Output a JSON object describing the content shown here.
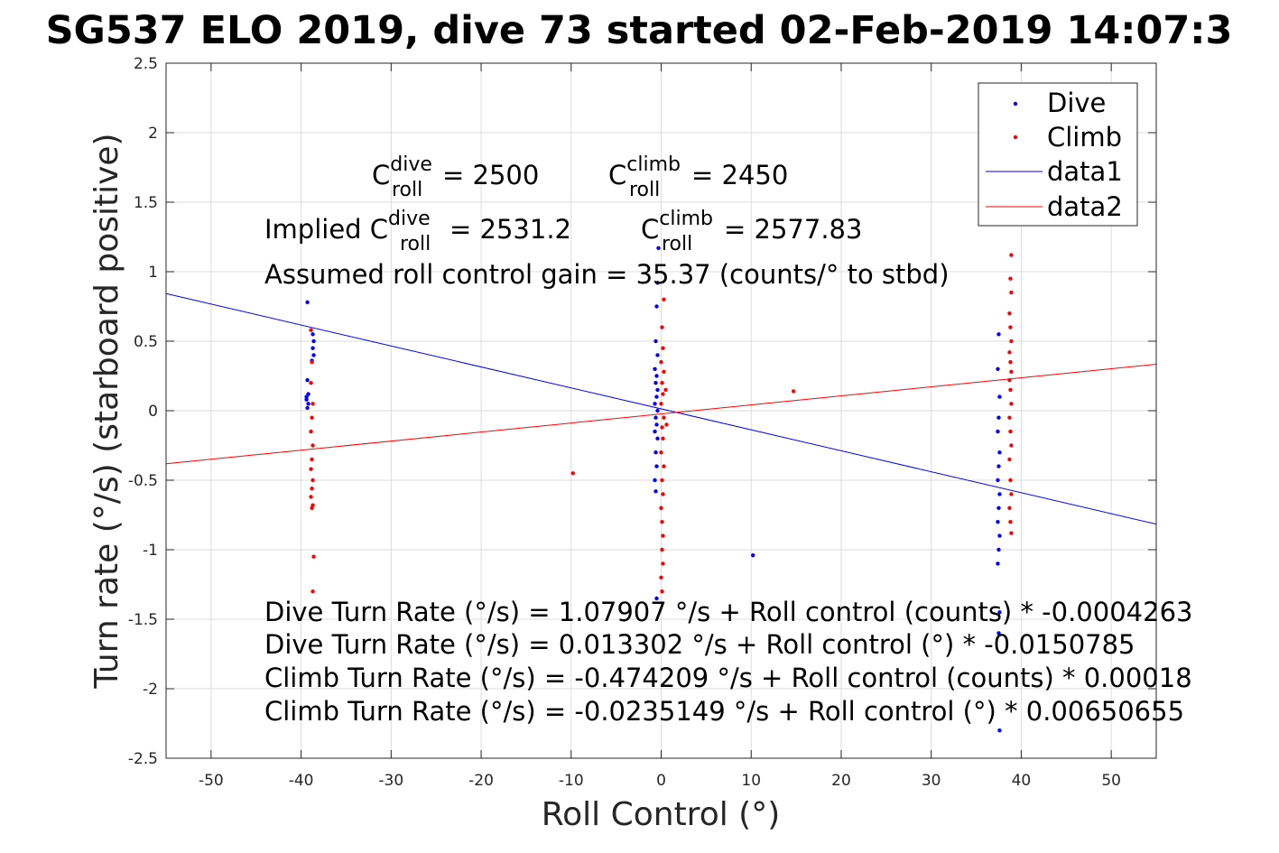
{
  "chart_data": {
    "type": "scatter",
    "title": "SG537 ELO 2019, dive 73 started 02-Feb-2019 14:07:3",
    "xlabel": "Roll Control (°)",
    "ylabel": "Turn rate (°/s) (starboard positive)",
    "xlim": [
      -55,
      55
    ],
    "ylim": [
      -2.5,
      2.5
    ],
    "xticks": [
      "-50",
      "-40",
      "-30",
      "-20",
      "-10",
      "0",
      "10",
      "20",
      "30",
      "40",
      "50"
    ],
    "yticks": [
      "2.5",
      "2",
      "1.5",
      "1",
      "0.5",
      "0",
      "-0.5",
      "-1",
      "-1.5",
      "-2",
      "-2.5"
    ],
    "grid": true,
    "legend_position": "top-right",
    "legend": [
      "Dive",
      "Climb",
      "data1",
      "data2"
    ],
    "colors": {
      "dive": "#0000ff",
      "climb": "#ff0000"
    },
    "series": [
      {
        "name": "Dive",
        "kind": "points",
        "points": [
          [
            -39.3,
            0.78
          ],
          [
            -39.4,
            0.1
          ],
          [
            -39.2,
            0.05
          ],
          [
            -39.3,
            0.02
          ],
          [
            -39.4,
            0.08
          ],
          [
            -39.2,
            0.12
          ],
          [
            -39.3,
            0.22
          ],
          [
            -38.7,
            0.55
          ],
          [
            -38.6,
            0.5
          ],
          [
            -38.7,
            0.45
          ],
          [
            -38.6,
            0.4
          ],
          [
            -38.8,
            0.36
          ],
          [
            -0.5,
            0.75
          ],
          [
            -0.6,
            0.5
          ],
          [
            -0.4,
            0.4
          ],
          [
            -0.7,
            0.3
          ],
          [
            -0.5,
            0.25
          ],
          [
            -0.6,
            0.2
          ],
          [
            -0.4,
            0.15
          ],
          [
            -0.5,
            0.1
          ],
          [
            -0.7,
            0.05
          ],
          [
            -0.4,
            0.0
          ],
          [
            -0.6,
            -0.05
          ],
          [
            -0.5,
            -0.1
          ],
          [
            -0.7,
            -0.15
          ],
          [
            -0.4,
            -0.2
          ],
          [
            -0.6,
            -0.3
          ],
          [
            -0.5,
            -0.4
          ],
          [
            -0.7,
            -0.5
          ],
          [
            -0.6,
            -0.58
          ],
          [
            -0.3,
            1.17
          ],
          [
            -0.4,
            0.92
          ],
          [
            -0.5,
            -1.35
          ],
          [
            10.2,
            -1.04
          ],
          [
            37.5,
            0.55
          ],
          [
            37.4,
            0.3
          ],
          [
            37.6,
            0.1
          ],
          [
            37.5,
            -0.05
          ],
          [
            37.4,
            -0.15
          ],
          [
            37.6,
            -0.3
          ],
          [
            37.5,
            -0.4
          ],
          [
            37.4,
            -0.5
          ],
          [
            37.6,
            -0.6
          ],
          [
            37.5,
            -0.7
          ],
          [
            37.4,
            -0.8
          ],
          [
            37.6,
            -0.9
          ],
          [
            37.5,
            -1.0
          ],
          [
            37.4,
            -1.1
          ],
          [
            37.6,
            -1.45
          ],
          [
            37.5,
            -1.6
          ],
          [
            37.6,
            -2.3
          ]
        ]
      },
      {
        "name": "Climb",
        "kind": "points",
        "points": [
          [
            -38.9,
            0.58
          ],
          [
            -38.8,
            0.35
          ],
          [
            -38.9,
            0.2
          ],
          [
            -38.7,
            0.05
          ],
          [
            -38.8,
            -0.05
          ],
          [
            -38.9,
            -0.15
          ],
          [
            -38.7,
            -0.25
          ],
          [
            -38.8,
            -0.35
          ],
          [
            -38.9,
            -0.42
          ],
          [
            -38.7,
            -0.5
          ],
          [
            -38.8,
            -0.56
          ],
          [
            -38.9,
            -0.62
          ],
          [
            -38.7,
            -0.68
          ],
          [
            -38.8,
            -0.7
          ],
          [
            -38.6,
            -1.05
          ],
          [
            -38.7,
            -1.3
          ],
          [
            -9.8,
            -0.45
          ],
          [
            14.7,
            0.14
          ],
          [
            0.1,
            0.6
          ],
          [
            0.2,
            0.45
          ],
          [
            0.0,
            0.35
          ],
          [
            0.3,
            0.28
          ],
          [
            0.1,
            0.2
          ],
          [
            0.2,
            0.12
          ],
          [
            0.0,
            0.05
          ],
          [
            0.3,
            -0.05
          ],
          [
            0.1,
            -0.12
          ],
          [
            0.2,
            -0.2
          ],
          [
            0.0,
            -0.3
          ],
          [
            0.3,
            -0.4
          ],
          [
            0.1,
            -0.5
          ],
          [
            0.2,
            -0.6
          ],
          [
            0.0,
            -0.7
          ],
          [
            0.1,
            -0.8
          ],
          [
            0.2,
            -0.9
          ],
          [
            0.1,
            -1.0
          ],
          [
            0.2,
            -1.1
          ],
          [
            0.0,
            -1.2
          ],
          [
            0.1,
            -1.3
          ],
          [
            0.3,
            0.8
          ],
          [
            0.5,
            0.15
          ],
          [
            0.6,
            -0.1
          ],
          [
            38.9,
            1.12
          ],
          [
            38.8,
            0.95
          ],
          [
            38.9,
            0.85
          ],
          [
            38.7,
            0.7
          ],
          [
            38.8,
            0.6
          ],
          [
            38.9,
            0.5
          ],
          [
            38.7,
            0.42
          ],
          [
            38.8,
            0.35
          ],
          [
            38.9,
            0.28
          ],
          [
            38.7,
            0.22
          ],
          [
            38.8,
            0.15
          ],
          [
            38.9,
            0.05
          ],
          [
            38.7,
            -0.05
          ],
          [
            38.8,
            -0.15
          ],
          [
            38.9,
            -0.25
          ],
          [
            38.7,
            -0.35
          ],
          [
            38.8,
            -0.5
          ],
          [
            38.9,
            -0.6
          ],
          [
            38.7,
            -0.7
          ],
          [
            38.8,
            -0.8
          ],
          [
            38.9,
            -0.88
          ]
        ]
      },
      {
        "name": "data1",
        "kind": "line",
        "slope": -0.0150785,
        "intercept": 0.013302
      },
      {
        "name": "data2",
        "kind": "line",
        "slope": 0.00650655,
        "intercept": -0.0235149
      }
    ],
    "annotations": {
      "c_dive_base": "C",
      "c_dive_sup": "dive",
      "c_dive_sub": "roll",
      "c_dive_value": " = 2500",
      "c_climb_base": "C",
      "c_climb_sup": "climb",
      "c_climb_sub": "roll",
      "c_climb_value": " = 2450",
      "implied_prefix": "Implied C",
      "implied_dive_sup": "dive",
      "implied_dive_sub": "roll",
      "implied_dive_value": " = 2531.2",
      "implied_climb_base": "C",
      "implied_climb_sup": "climb",
      "implied_climb_sub": "roll",
      "implied_climb_value": " = 2577.83",
      "gain": "Assumed roll control gain = 35.37 (counts/° to stbd)",
      "eq1": "Dive Turn Rate (°/s) = 1.07907 °/s + Roll control (counts) * -0.0004263",
      "eq2": "Dive Turn Rate (°/s) = 0.013302 °/s + Roll control (°) * -0.0150785",
      "eq3": "Climb Turn Rate (°/s) = -0.474209 °/s + Roll control (counts) * 0.00018",
      "eq4": "Climb Turn Rate (°/s) = -0.0235149 °/s + Roll control (°) * 0.00650655"
    }
  }
}
